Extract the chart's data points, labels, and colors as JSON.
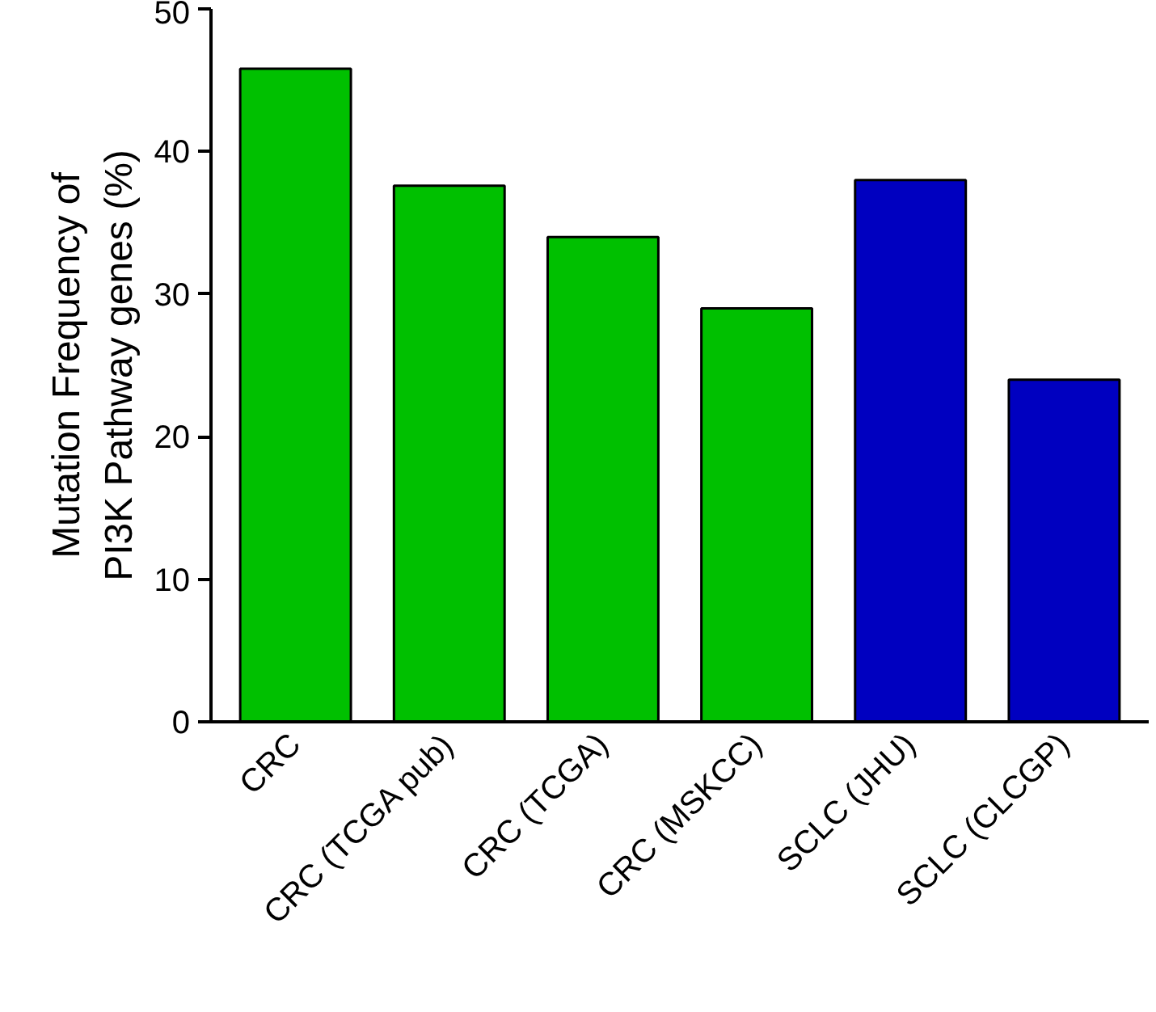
{
  "chart_data": {
    "type": "bar",
    "ylabel": "Mutation Frequency of\nPI3K Pathway genes (%)",
    "categories": [
      "CRC",
      "CRC (TCGA pub)",
      "CRC (TCGA)",
      "CRC (MSKCC)",
      "SCLC (JHU)",
      "SCLC (CLCGP)"
    ],
    "values": [
      45.8,
      37.6,
      34,
      29,
      38,
      24
    ],
    "colors": [
      "#00c000",
      "#00c000",
      "#00c000",
      "#00c000",
      "#0000c0",
      "#0000c0"
    ],
    "ylim": [
      0,
      50
    ],
    "yticks": [
      0,
      10,
      20,
      30,
      40,
      50
    ],
    "grid": false
  }
}
